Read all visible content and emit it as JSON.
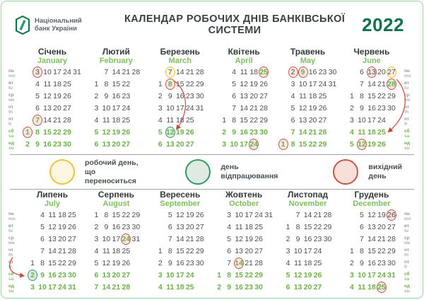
{
  "header": {
    "logo_line1": "Національний",
    "logo_line2": "банк України",
    "title": "КАЛЕНДАР РОБОЧИХ ДНІВ БАНКІВСЬКОЇ СИСТЕМИ",
    "year": "2022"
  },
  "day_labels": [
    {
      "ua": "пн",
      "en": "mo",
      "weekend": false
    },
    {
      "ua": "вт",
      "en": "tu",
      "weekend": false
    },
    {
      "ua": "ср",
      "en": "we",
      "weekend": false
    },
    {
      "ua": "чт",
      "en": "th",
      "weekend": false
    },
    {
      "ua": "пт",
      "en": "fr",
      "weekend": false
    },
    {
      "ua": "сб",
      "en": "sa",
      "weekend": true
    },
    {
      "ua": "нд",
      "en": "su",
      "weekend": true
    }
  ],
  "months": [
    {
      "ua": "Січень",
      "en": "January",
      "cols": 6,
      "rows": [
        [
          null,
          3,
          10,
          17,
          24,
          31
        ],
        [
          null,
          4,
          11,
          18,
          25,
          null
        ],
        [
          null,
          5,
          12,
          19,
          26,
          null
        ],
        [
          null,
          6,
          13,
          20,
          27,
          null
        ],
        [
          null,
          7,
          14,
          21,
          28,
          null
        ],
        [
          1,
          8,
          15,
          22,
          29,
          null
        ],
        [
          2,
          9,
          16,
          23,
          30,
          null
        ]
      ],
      "marks": [
        {
          "d": 1,
          "c": "red"
        },
        {
          "d": 3,
          "c": "red"
        },
        {
          "d": 7,
          "c": "red",
          "g": true
        }
      ]
    },
    {
      "ua": "Лютий",
      "en": "February",
      "cols": 5,
      "rows": [
        [
          null,
          7,
          14,
          21,
          28
        ],
        [
          1,
          8,
          15,
          22,
          null
        ],
        [
          2,
          9,
          16,
          23,
          null
        ],
        [
          3,
          10,
          17,
          24,
          null
        ],
        [
          4,
          11,
          18,
          25,
          null
        ],
        [
          5,
          12,
          19,
          26,
          null
        ],
        [
          6,
          13,
          20,
          27,
          null
        ]
      ],
      "marks": []
    },
    {
      "ua": "Березень",
      "en": "March",
      "cols": 5,
      "rows": [
        [
          null,
          7,
          14,
          21,
          28
        ],
        [
          1,
          8,
          15,
          22,
          29
        ],
        [
          2,
          9,
          16,
          23,
          30
        ],
        [
          3,
          10,
          17,
          24,
          31
        ],
        [
          4,
          11,
          18,
          25,
          null
        ],
        [
          5,
          12,
          19,
          26,
          null
        ],
        [
          6,
          13,
          20,
          27,
          null
        ]
      ],
      "marks": [
        {
          "d": 7,
          "c": "yellow"
        },
        {
          "d": 8,
          "c": "red",
          "g": true
        },
        {
          "d": 12,
          "c": "green"
        }
      ]
    },
    {
      "ua": "Квітень",
      "en": "April",
      "cols": 5,
      "rows": [
        [
          null,
          4,
          11,
          18,
          25
        ],
        [
          null,
          5,
          12,
          19,
          26
        ],
        [
          null,
          6,
          13,
          20,
          27
        ],
        [
          null,
          7,
          14,
          21,
          28
        ],
        [
          1,
          8,
          15,
          22,
          29
        ],
        [
          2,
          9,
          16,
          23,
          30
        ],
        [
          3,
          10,
          17,
          24,
          null
        ]
      ],
      "marks": [
        {
          "d": 24,
          "c": "red"
        },
        {
          "d": 25,
          "c": "red",
          "g": true
        }
      ]
    },
    {
      "ua": "Травень",
      "en": "May",
      "cols": 6,
      "rows": [
        [
          null,
          2,
          9,
          16,
          23,
          30
        ],
        [
          null,
          3,
          10,
          17,
          24,
          31
        ],
        [
          null,
          4,
          11,
          18,
          25,
          null
        ],
        [
          null,
          5,
          12,
          19,
          26,
          null
        ],
        [
          null,
          6,
          13,
          20,
          27,
          null
        ],
        [
          null,
          7,
          14,
          21,
          28,
          null
        ],
        [
          1,
          8,
          15,
          22,
          29,
          null
        ]
      ],
      "marks": [
        {
          "d": 1,
          "c": "red"
        },
        {
          "d": 2,
          "c": "red"
        },
        {
          "d": 9,
          "c": "red",
          "g": true
        }
      ]
    },
    {
      "ua": "Червень",
      "en": "June",
      "cols": 5,
      "rows": [
        [
          null,
          6,
          13,
          20,
          27
        ],
        [
          null,
          7,
          14,
          21,
          28
        ],
        [
          1,
          8,
          15,
          22,
          29
        ],
        [
          2,
          9,
          16,
          23,
          30
        ],
        [
          3,
          10,
          17,
          24,
          null
        ],
        [
          4,
          11,
          18,
          25,
          null
        ],
        [
          5,
          12,
          19,
          26,
          null
        ]
      ],
      "marks": [
        {
          "d": 12,
          "c": "red"
        },
        {
          "d": 13,
          "c": "red"
        },
        {
          "d": 27,
          "c": "yellow"
        },
        {
          "d": 28,
          "c": "red",
          "g": true
        }
      ]
    },
    {
      "ua": "Липень",
      "en": "July",
      "cols": 5,
      "rows": [
        [
          null,
          4,
          11,
          18,
          25
        ],
        [
          null,
          5,
          12,
          19,
          26
        ],
        [
          null,
          6,
          13,
          20,
          27
        ],
        [
          null,
          7,
          14,
          21,
          28
        ],
        [
          1,
          8,
          15,
          22,
          29
        ],
        [
          2,
          9,
          16,
          23,
          30
        ],
        [
          3,
          10,
          17,
          24,
          31
        ]
      ],
      "marks": [
        {
          "d": 2,
          "c": "green"
        }
      ]
    },
    {
      "ua": "Серпень",
      "en": "August",
      "cols": 5,
      "rows": [
        [
          1,
          8,
          15,
          22,
          29
        ],
        [
          2,
          9,
          16,
          23,
          30
        ],
        [
          3,
          10,
          17,
          24,
          31
        ],
        [
          4,
          11,
          18,
          25,
          null
        ],
        [
          5,
          12,
          19,
          26,
          null
        ],
        [
          6,
          13,
          20,
          27,
          null
        ],
        [
          7,
          14,
          21,
          28,
          null
        ]
      ],
      "marks": [
        {
          "d": 24,
          "c": "red",
          "g": true
        }
      ]
    },
    {
      "ua": "Вересень",
      "en": "September",
      "cols": 5,
      "rows": [
        [
          null,
          5,
          12,
          19,
          26
        ],
        [
          null,
          6,
          13,
          20,
          27
        ],
        [
          null,
          7,
          14,
          21,
          28
        ],
        [
          1,
          8,
          15,
          22,
          29
        ],
        [
          2,
          9,
          16,
          23,
          30
        ],
        [
          3,
          10,
          17,
          24,
          null
        ],
        [
          4,
          11,
          18,
          25,
          null
        ]
      ],
      "marks": []
    },
    {
      "ua": "Жовтень",
      "en": "October",
      "cols": 6,
      "rows": [
        [
          null,
          3,
          10,
          17,
          24,
          31
        ],
        [
          null,
          4,
          11,
          18,
          25,
          null
        ],
        [
          null,
          5,
          12,
          19,
          26,
          null
        ],
        [
          null,
          6,
          13,
          20,
          27,
          null
        ],
        [
          null,
          7,
          14,
          21,
          28,
          null
        ],
        [
          1,
          8,
          15,
          22,
          29,
          null
        ],
        [
          2,
          9,
          16,
          23,
          30,
          null
        ]
      ],
      "marks": [
        {
          "d": 14,
          "c": "red",
          "g": true
        }
      ]
    },
    {
      "ua": "Листопад",
      "en": "November",
      "cols": 5,
      "rows": [
        [
          null,
          7,
          14,
          21,
          28
        ],
        [
          1,
          8,
          15,
          22,
          29
        ],
        [
          2,
          9,
          16,
          23,
          30
        ],
        [
          3,
          10,
          17,
          24,
          null
        ],
        [
          4,
          11,
          18,
          25,
          null
        ],
        [
          5,
          12,
          19,
          26,
          null
        ],
        [
          6,
          13,
          20,
          27,
          null
        ]
      ],
      "marks": []
    },
    {
      "ua": "Грудень",
      "en": "December",
      "cols": 5,
      "rows": [
        [
          null,
          5,
          12,
          19,
          26
        ],
        [
          null,
          6,
          13,
          20,
          27
        ],
        [
          null,
          7,
          14,
          21,
          28
        ],
        [
          1,
          8,
          15,
          22,
          29
        ],
        [
          2,
          9,
          16,
          23,
          30
        ],
        [
          3,
          10,
          17,
          24,
          31
        ],
        [
          4,
          11,
          18,
          25,
          null
        ]
      ],
      "marks": [
        {
          "d": 25,
          "c": "red"
        },
        {
          "d": 26,
          "c": "red"
        }
      ]
    }
  ],
  "legend": [
    {
      "key": "transfer",
      "border": "#eac43e",
      "fill": "#fdf7e1",
      "lines": [
        "робочий день,",
        "що переноситься"
      ]
    },
    {
      "key": "workoff",
      "border": "#2f9a66",
      "fill": "#dfeae2",
      "lines": [
        "день",
        "відпрацювання"
      ]
    },
    {
      "key": "dayoff",
      "border": "#c9554a",
      "fill": "#f7e0da",
      "lines": [
        "вихідний день"
      ]
    }
  ],
  "transfers": [
    {
      "from_month": "Березень",
      "from_day": 7,
      "to_month": "Березень",
      "to_day": 12
    },
    {
      "from_month": "Червень",
      "from_day": 27,
      "to_month": "Липень",
      "to_day": 2
    }
  ],
  "colors": {
    "dark_green": "#10714a",
    "accent_green": "#6cb04a",
    "english_green": "#7cc05e",
    "weekday_text": "#4d4d4d",
    "label_gray": "#8f9898",
    "card_border": "#9ecf9e",
    "dayoff_red": "#c9554a",
    "transfer_yellow": "#eac43e",
    "workoff_green": "#2f9a66"
  }
}
